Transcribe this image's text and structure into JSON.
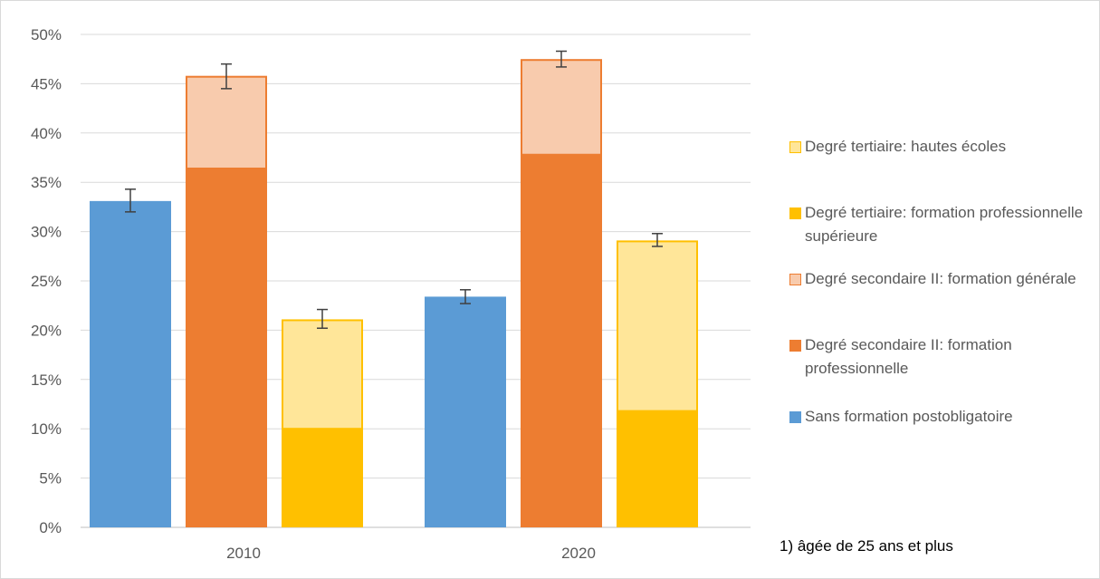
{
  "chart_data": {
    "type": "bar",
    "stacked": true,
    "categories": [
      "2010",
      "2020"
    ],
    "ylim": [
      0,
      0.5
    ],
    "yticks": [
      "0%",
      "5%",
      "10%",
      "15%",
      "20%",
      "25%",
      "30%",
      "35%",
      "40%",
      "45%",
      "50%"
    ],
    "grid": true,
    "legend_position": "right",
    "groups": [
      {
        "name": "Sans formation postobligatoire",
        "segments": [
          {
            "series": "Sans formation postobligatoire",
            "values": [
              0.331,
              0.234
            ],
            "color": "#5B9BD5"
          }
        ],
        "error": [
          [
            0.32,
            0.343
          ],
          [
            0.227,
            0.241
          ]
        ]
      },
      {
        "name": "Degré secondaire II",
        "segments": [
          {
            "series": "Degré secondaire II: formation professionnelle",
            "values": [
              0.364,
              0.378
            ],
            "color": "#ED7D31"
          },
          {
            "series": "Degré secondaire II: formation générale",
            "values": [
              0.094,
              0.097
            ],
            "color": "#F8CBAD"
          }
        ],
        "error": [
          [
            0.445,
            0.47
          ],
          [
            0.467,
            0.483
          ]
        ]
      },
      {
        "name": "Degré tertiaire",
        "segments": [
          {
            "series": "Degré tertiaire: formation professionnelle supérieure",
            "values": [
              0.1,
              0.118
            ],
            "color": "#FFC000"
          },
          {
            "series": "Degré tertiaire: hautes écoles",
            "values": [
              0.111,
              0.173
            ],
            "color": "#FFE699"
          }
        ],
        "error": [
          [
            0.202,
            0.221
          ],
          [
            0.285,
            0.298
          ]
        ]
      }
    ],
    "legend": [
      {
        "label": "Degré tertiaire: hautes écoles",
        "color": "#FFE699",
        "border": "#FFC000"
      },
      {
        "label": "Degré tertiaire: formation professionnelle supérieure",
        "color": "#FFC000",
        "border": "#FFC000"
      },
      {
        "label": "Degré secondaire II: formation générale",
        "color": "#F8CBAD",
        "border": "#ED7D31"
      },
      {
        "label": "Degré secondaire II: formation professionnelle",
        "color": "#ED7D31",
        "border": "#ED7D31"
      },
      {
        "label": "Sans formation postobligatoire",
        "color": "#5B9BD5",
        "border": "#5B9BD5"
      }
    ],
    "footnote": "1) âgée de 25 ans et plus"
  }
}
